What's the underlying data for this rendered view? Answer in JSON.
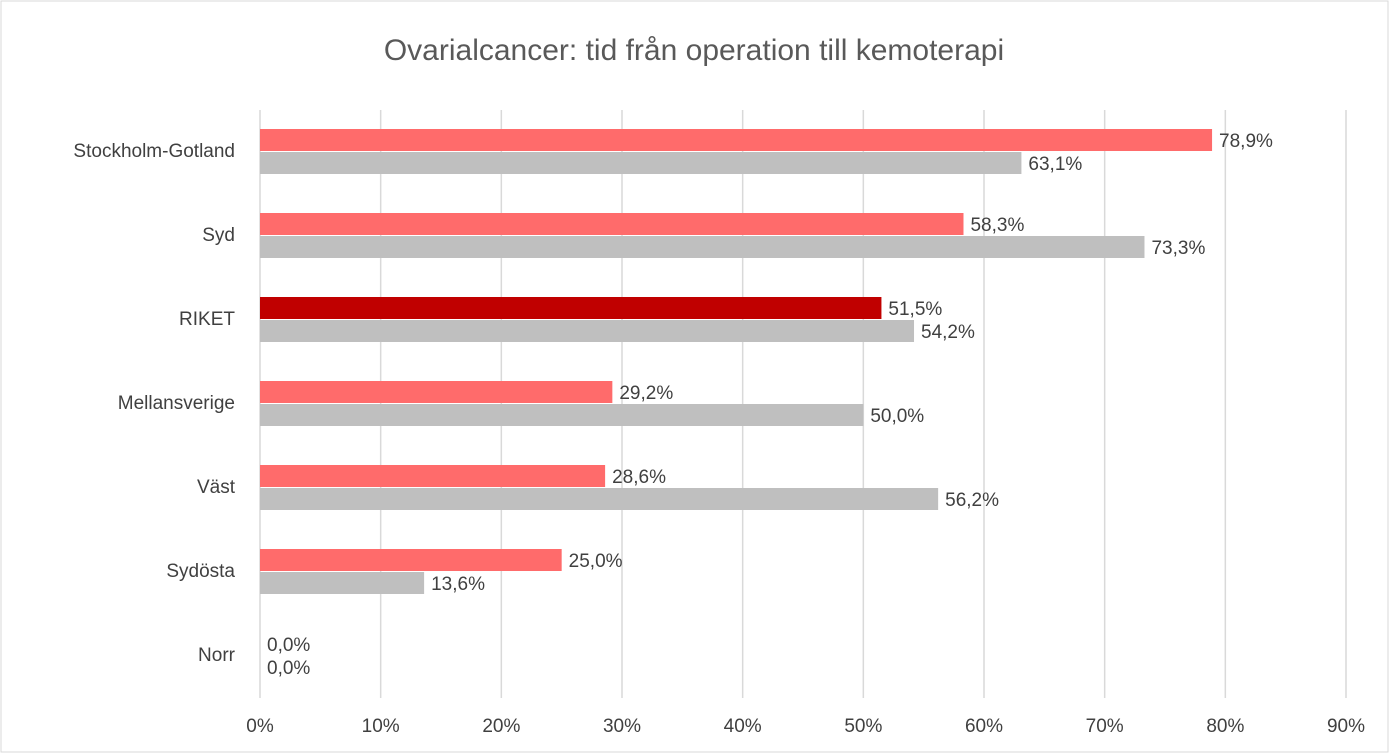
{
  "chart_data": {
    "type": "bar",
    "orientation": "horizontal",
    "title": "Ovarialcancer: tid från operation till kemoterapi",
    "categories": [
      "Stockholm-Gotland",
      "Syd",
      "RIKET",
      "Mellansverige",
      "Väst",
      "Sydösta",
      "Norr"
    ],
    "series": [
      {
        "color": "#ff6b6b",
        "colors": [
          "#ff6b6b",
          "#ff6b6b",
          "#c00000",
          "#ff6b6b",
          "#ff6b6b",
          "#ff6b6b",
          "#ff6b6b"
        ],
        "values": [
          78.9,
          58.3,
          51.5,
          29.2,
          28.6,
          25.0,
          0.0
        ],
        "value_labels": [
          "78,9%",
          "58,3%",
          "51,5%",
          "29,2%",
          "28,6%",
          "25,0%",
          "0,0%"
        ]
      },
      {
        "color": "#bfbfbf",
        "values": [
          63.1,
          73.3,
          54.2,
          50.0,
          56.2,
          13.6,
          0.0
        ],
        "value_labels": [
          "63,1%",
          "73,3%",
          "54,2%",
          "50,0%",
          "56,2%",
          "13,6%",
          "0,0%"
        ]
      }
    ],
    "xlim": [
      0,
      90
    ],
    "xticks": [
      {
        "value": 0,
        "label": "0%"
      },
      {
        "value": 10,
        "label": "10%"
      },
      {
        "value": 20,
        "label": "20%"
      },
      {
        "value": 30,
        "label": "30%"
      },
      {
        "value": 40,
        "label": "40%"
      },
      {
        "value": 50,
        "label": "50%"
      },
      {
        "value": 60,
        "label": "60%"
      },
      {
        "value": 70,
        "label": "70%"
      },
      {
        "value": 80,
        "label": "80%"
      },
      {
        "value": 90,
        "label": "90%"
      }
    ],
    "grid": true
  }
}
